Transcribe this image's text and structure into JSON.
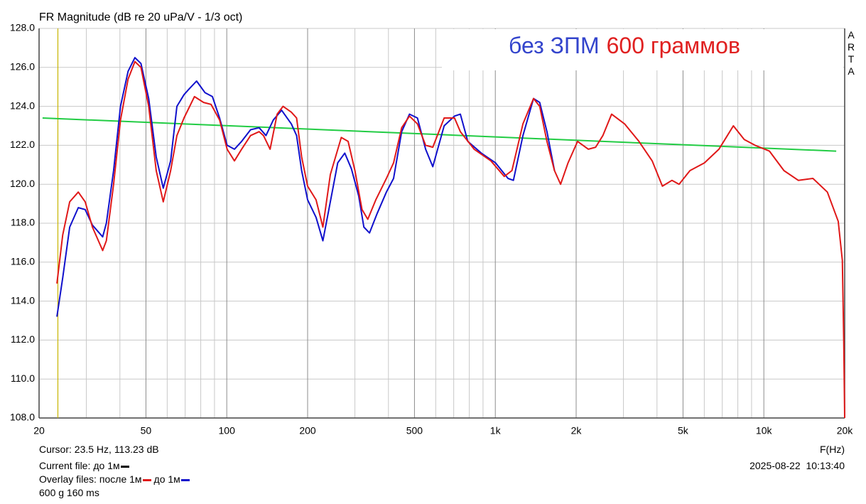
{
  "chart_data": {
    "type": "line",
    "title": "FR Magnitude (dB re 20 uPa/V - 1/3 oct)",
    "annotation": [
      {
        "text": "без ЗПМ",
        "color": "#3344cc"
      },
      {
        "text": "600 граммов",
        "color": "#e02020"
      }
    ],
    "watermark": "ARTA",
    "xlabel": "F(Hz)",
    "log_x": true,
    "grid": true,
    "xlim": [
      20,
      20000
    ],
    "ylim": [
      108,
      128
    ],
    "xticks": [
      20,
      50,
      100,
      200,
      500,
      {
        "value": 1000,
        "label": "1k"
      },
      {
        "value": 2000,
        "label": "2k"
      },
      {
        "value": 5000,
        "label": "5k"
      },
      {
        "value": 10000,
        "label": "10k"
      },
      {
        "value": 20000,
        "label": "20k"
      }
    ],
    "xminorticks": [
      30,
      40,
      60,
      70,
      80,
      90,
      300,
      400,
      600,
      700,
      800,
      900,
      3000,
      4000,
      6000,
      7000,
      8000,
      9000
    ],
    "yticks": [
      {
        "value": 108,
        "label": "108.0"
      },
      {
        "value": 110,
        "label": "110.0"
      },
      {
        "value": 112,
        "label": "112.0"
      },
      {
        "value": 114,
        "label": "114.0"
      },
      {
        "value": 116,
        "label": "116.0"
      },
      {
        "value": 118,
        "label": "118.0"
      },
      {
        "value": 120,
        "label": "120.0"
      },
      {
        "value": 122,
        "label": "122.0"
      },
      {
        "value": 124,
        "label": "124.0"
      },
      {
        "value": 126,
        "label": "126.0"
      },
      {
        "value": 128,
        "label": "128.0"
      }
    ],
    "cursor": {
      "x": 23.5,
      "color": "#c8b400",
      "label": "Cursor: 23.5 Hz, 113.23 dB"
    },
    "current_file_label": "Current file:",
    "current_file": "до 1м",
    "current_file_color": "#000000",
    "overlay_label": "Overlay files:",
    "note": "600 g 160 ms",
    "timestamp": "2025-08-22  10:13:40",
    "series": [
      {
        "name": "после 1м",
        "color": "#e01818",
        "x": [
          23.3,
          24.5,
          26,
          28,
          29.7,
          31.6,
          34.5,
          35.6,
          37.9,
          40.2,
          42.9,
          45.5,
          47.9,
          51.2,
          54.6,
          58,
          61.8,
          65.2,
          69.3,
          75.8,
          82,
          87.4,
          94,
          100.3,
          106.8,
          113.6,
          122.6,
          132,
          137,
          145,
          154,
          162,
          174,
          182,
          190,
          200,
          215,
          228,
          243,
          267,
          283,
          300,
          319,
          335,
          359,
          393,
          418,
          448,
          479,
          513,
          550,
          585,
          645,
          705,
          741,
          834,
          963,
          1080,
          1153,
          1267,
          1388,
          1463,
          1557,
          1661,
          1750,
          1866,
          2025,
          2221,
          2363,
          2515,
          2711,
          3030,
          3426,
          3837,
          4190,
          4548,
          4835,
          5307,
          6010,
          6804,
          7700,
          8450,
          9280,
          10490,
          11880,
          13440,
          15230,
          17240,
          18920,
          19600,
          19840,
          20000
        ],
        "values": [
          114.9,
          117.4,
          119.1,
          119.6,
          119.1,
          117.8,
          116.6,
          117.1,
          120.0,
          123.3,
          125.4,
          126.3,
          126.0,
          124.0,
          120.7,
          119.1,
          120.7,
          122.5,
          123.4,
          124.5,
          124.2,
          124.1,
          123.3,
          121.8,
          121.2,
          121.8,
          122.5,
          122.7,
          122.5,
          121.8,
          123.6,
          124.0,
          123.7,
          123.4,
          121.4,
          119.9,
          119.2,
          117.8,
          120.5,
          122.4,
          122.2,
          120.7,
          118.7,
          118.2,
          119.2,
          120.3,
          121.1,
          122.9,
          123.5,
          123.1,
          122.0,
          121.9,
          123.4,
          123.4,
          122.7,
          121.8,
          121.2,
          120.4,
          120.7,
          123.1,
          124.4,
          124.0,
          122.2,
          120.7,
          120.0,
          121.1,
          122.2,
          121.8,
          121.9,
          122.5,
          123.6,
          123.1,
          122.2,
          121.2,
          119.9,
          120.2,
          120.0,
          120.7,
          121.1,
          121.8,
          123.0,
          122.3,
          122.0,
          121.7,
          120.7,
          120.2,
          120.3,
          119.6,
          118.1,
          116.1,
          111.9,
          108.0
        ]
      },
      {
        "name": "до 1м",
        "color": "#1010cc",
        "x": [
          23.3,
          24.5,
          26,
          28,
          29.7,
          31.6,
          34.5,
          35.6,
          37.9,
          40.2,
          42.9,
          45.5,
          47.9,
          51.2,
          54.6,
          58,
          61.8,
          65.2,
          69.3,
          72.5,
          77.2,
          83,
          88.4,
          94,
          100.3,
          106.8,
          113.6,
          122.6,
          132,
          140,
          149,
          160,
          174,
          182,
          190,
          200,
          215,
          228,
          240,
          259,
          275,
          291,
          310,
          324,
          340,
          363,
          393,
          418,
          448,
          479,
          513,
          550,
          585,
          645,
          705,
          741,
          790,
          887,
          1002,
          1115,
          1168,
          1267,
          1388,
          1463,
          1557,
          1661
        ],
        "values": [
          113.2,
          115.2,
          117.8,
          118.8,
          118.7,
          117.9,
          117.3,
          118.0,
          120.7,
          124.0,
          125.8,
          126.5,
          126.2,
          124.4,
          121.4,
          119.8,
          121.2,
          124.0,
          124.6,
          124.9,
          125.3,
          124.7,
          124.5,
          123.4,
          122.0,
          121.8,
          122.2,
          122.8,
          122.9,
          122.5,
          123.3,
          123.8,
          123.1,
          122.5,
          120.7,
          119.2,
          118.3,
          117.1,
          118.7,
          121.1,
          121.6,
          120.8,
          119.4,
          117.8,
          117.5,
          118.5,
          119.6,
          120.3,
          122.7,
          123.6,
          123.4,
          121.8,
          120.9,
          123.0,
          123.5,
          123.6,
          122.2,
          121.6,
          121.1,
          120.3,
          120.2,
          122.5,
          124.4,
          124.2,
          122.7,
          120.7
        ]
      },
      {
        "color": "#22cc44",
        "x": [
          20.6,
          18600
        ],
        "values": [
          123.4,
          121.7
        ]
      }
    ]
  }
}
